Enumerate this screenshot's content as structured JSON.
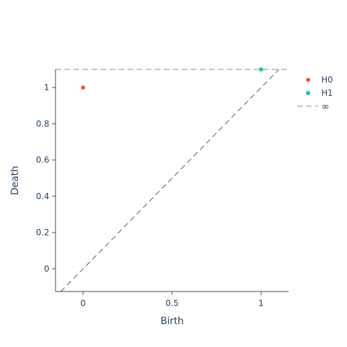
{
  "chart_data": {
    "type": "scatter",
    "xlabel": "Birth",
    "ylabel": "Death",
    "xlim": [
      -0.155,
      1.155
    ],
    "ylim": [
      -0.1253,
      1.1
    ],
    "x_ticks": [
      0,
      0.5,
      1
    ],
    "x_tick_labels": [
      "0",
      "0.5",
      "1"
    ],
    "y_ticks": [
      0,
      0.2,
      0.4,
      0.6,
      0.8,
      1
    ],
    "y_tick_labels": [
      "0",
      "0.2",
      "0.4",
      "0.6",
      "0.8",
      "1"
    ],
    "grid": false,
    "legend_position": "top-right",
    "series": [
      {
        "name": "H0",
        "color": "#ef553b",
        "points": [
          {
            "x": 0,
            "y": 1
          }
        ]
      },
      {
        "name": "H1",
        "color": "#00cc96",
        "points": [
          {
            "x": 1,
            "y": 1.1
          }
        ]
      }
    ],
    "infinity_line": {
      "name": "∞",
      "y": 1.1,
      "color": "#888888",
      "style": "dashed"
    },
    "diagonal": {
      "color": "#555555",
      "style": "dashed"
    }
  }
}
